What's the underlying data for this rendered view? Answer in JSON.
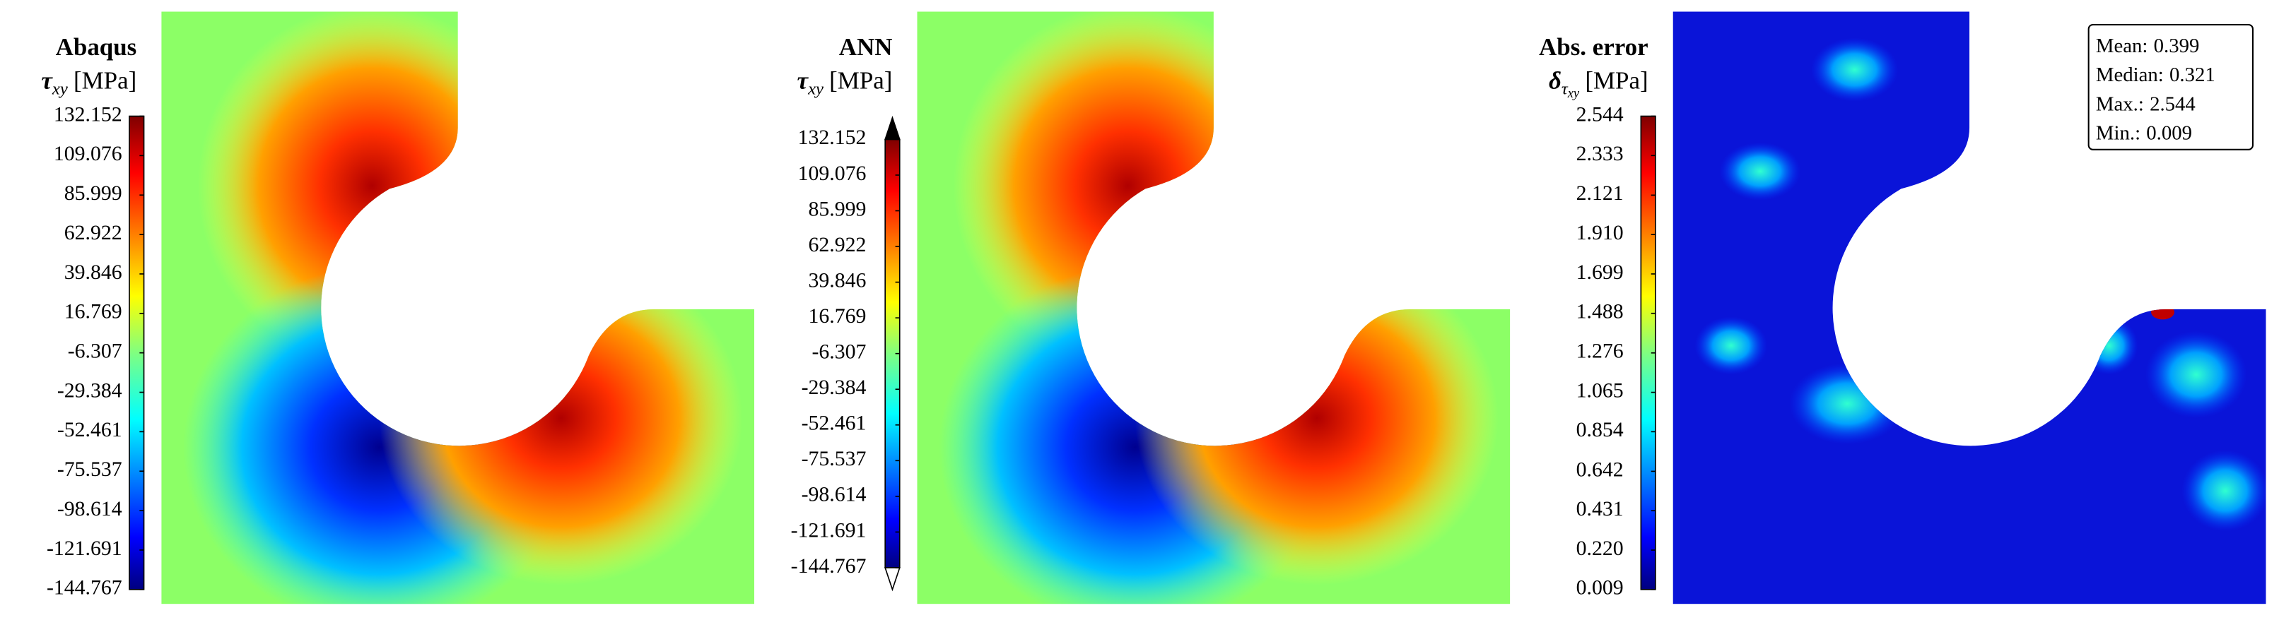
{
  "panels": [
    {
      "title": "Abaqus",
      "symbol": "τ",
      "subscript": "xy",
      "unit": "[MPa]",
      "colorbar": {
        "range": [
          -144.767,
          132.152
        ],
        "ticks": [
          132.152,
          109.076,
          85.999,
          62.922,
          39.846,
          16.769,
          -6.307,
          -29.384,
          -52.461,
          -75.537,
          -98.614,
          -121.691,
          -144.767
        ]
      }
    },
    {
      "title": "ANN",
      "symbol": "τ",
      "subscript": "xy",
      "unit": "[MPa]",
      "colorbar": {
        "range": [
          -144.767,
          132.152
        ],
        "ticks": [
          132.152,
          109.076,
          85.999,
          62.922,
          39.846,
          16.769,
          -6.307,
          -29.384,
          -52.461,
          -75.537,
          -98.614,
          -121.691,
          -144.767
        ]
      }
    },
    {
      "title": "Abs. error",
      "symbol": "δ",
      "subscript": "τ",
      "subsubscript": "xy",
      "unit": "[MPa]",
      "colorbar": {
        "range": [
          0.009,
          2.544
        ],
        "ticks": [
          2.544,
          2.333,
          2.121,
          {
            "value": 1.91,
            "label": "1.910"
          },
          1.699,
          1.488,
          1.276,
          1.065,
          0.854,
          0.642,
          0.431,
          {
            "value": 0.22,
            "label": "0.220"
          },
          0.009
        ]
      },
      "stats": [
        {
          "label": "Mean:",
          "value": 0.399
        },
        {
          "label": "Median:",
          "value": 0.321
        },
        {
          "label": "Max.:",
          "value": 2.544
        },
        {
          "label": "Min.:",
          "value": 0.009
        }
      ]
    }
  ]
}
